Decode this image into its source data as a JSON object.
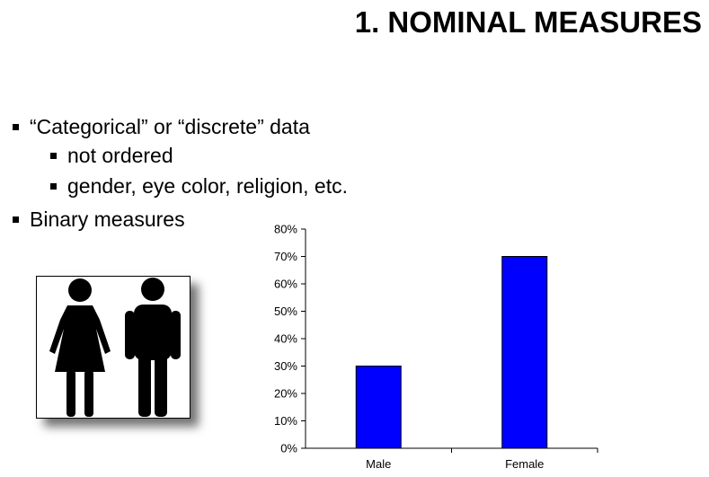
{
  "slide": {
    "title": "1. NOMINAL MEASURES",
    "bullets": [
      "“Categorical” or “discrete” data",
      "not ordered",
      "gender, eye color, religion, etc.",
      "Binary measures"
    ]
  },
  "icons": {
    "figure": "restroom-woman-man-icon"
  },
  "colors": {
    "bar": "#0000ff"
  },
  "chart_data": {
    "type": "bar",
    "categories": [
      "Male",
      "Female"
    ],
    "values": [
      30,
      70
    ],
    "ylim": [
      0,
      80
    ],
    "yticks": [
      "0%",
      "10%",
      "20%",
      "30%",
      "40%",
      "50%",
      "60%",
      "70%",
      "80%"
    ],
    "grid": false,
    "legend": "none"
  }
}
